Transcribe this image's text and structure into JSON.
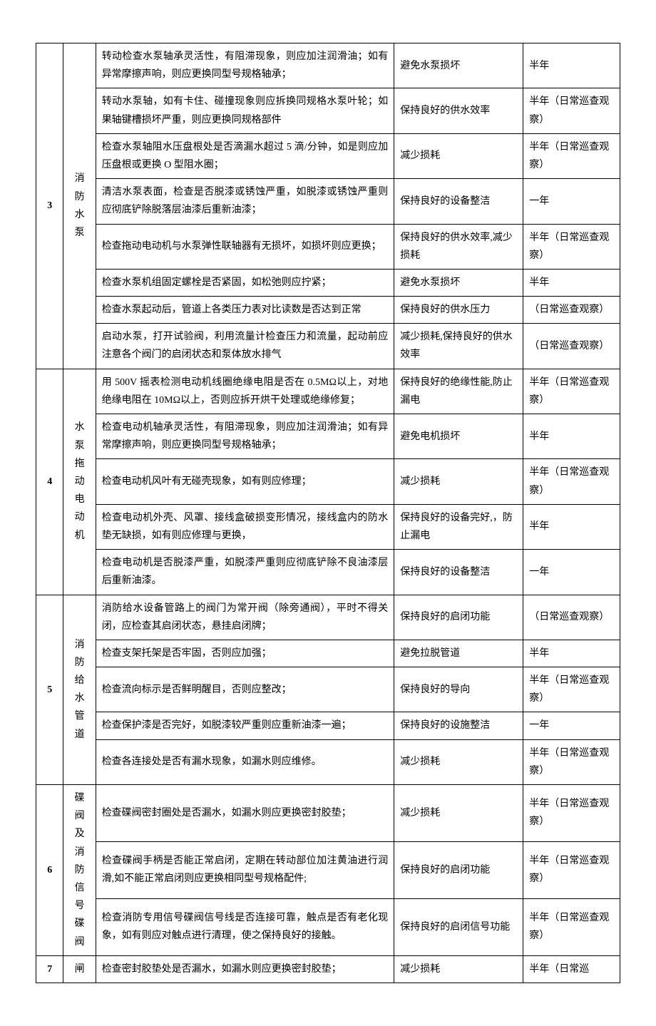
{
  "sections": [
    {
      "idx": "3",
      "name": "消防水泵",
      "rows": [
        {
          "desc": "转动检查水泵轴承灵活性，有阻滞现象，则应加注润滑油；如有异常摩擦声响，则应更换同型号规格轴承；",
          "goal": "避免水泵损坏",
          "freq": "半年"
        },
        {
          "desc": "转动水泵轴，如有卡住、碰撞现象则应拆换同规格水泵叶轮；如果轴键槽损坏严重，则应更换同规格部件",
          "goal": "保持良好的供水效率",
          "freq": "半年（日常巡查观察）"
        },
        {
          "desc": "检查水泵轴阻水压盘根处是否滴漏水超过 5 滴/分钟，如是则应加压盘根或更换 O 型阻水圈；",
          "goal": "减少损耗",
          "freq": "半年（日常巡查观察）"
        },
        {
          "desc": "清洁水泵表面，检查是否脱漆或锈蚀严重，如脱漆或锈蚀严重则应彻底铲除脱落层油漆后重新油漆；",
          "goal": "保持良好的设备整洁",
          "freq": "一年"
        },
        {
          "desc": "检查拖动电动机与水泵弹性联轴器有无损坏，如损坏则应更换；",
          "goal": "保持良好的供水效率,减少损耗",
          "freq": "半年（日常巡查观察）"
        },
        {
          "desc": "检查水泵机组固定螺栓是否紧固，如松弛则应拧紧；",
          "goal": "避免水泵损坏",
          "freq": "半年"
        },
        {
          "desc": "检查水泵起动后，管道上各类压力表对比读数是否达到正常",
          "goal": "保持良好的供水压力",
          "freq": "（日常巡查观察）"
        },
        {
          "desc": "启动水泵，打开试验阀，利用流量计检查压力和流量，起动前应注意各个阀门的启闭状态和泵体放水排气",
          "goal": "减少损耗,保持良好的供水效率",
          "freq": "（日常巡查观察）"
        }
      ]
    },
    {
      "idx": "4",
      "name": "水泵拖动电动机",
      "rows": [
        {
          "desc": "用 500V 摇表检测电动机线圈绝缘电阻是否在 0.5MΩ以上，对地绝缘电阻在 10MΩ以上，否则应拆开烘干处理或绝缘修复；",
          "goal": "保持良好的绝缘性能,防止漏电",
          "freq": "半年（日常巡查观察）"
        },
        {
          "desc": "检查电动机轴承灵活性，有阻滞现象，则应加注润滑油；如有异常摩擦声响，则应更换同型号规格轴承；",
          "goal": "避免电机损坏",
          "freq": "半年"
        },
        {
          "desc": "检查电动机风叶有无碰壳现象，如有则应修理；",
          "goal": "减少损耗",
          "freq": "半年（日常巡查观察）"
        },
        {
          "desc": "检查电动机外壳、风罩、接线盒破损变形情况，接线盒内的防水垫无缺损，如有则应修理与更换，",
          "goal": "保持良好的设备完好,，防止漏电",
          "freq": "半年"
        },
        {
          "desc": "检查电动机是否脱漆严重，如脱漆严重则应彻底铲除不良油漆层后重新油漆。",
          "goal": "保持良好的设备整洁",
          "freq": "一年"
        }
      ]
    },
    {
      "idx": "5",
      "name": "消防给水管道",
      "rows": [
        {
          "desc": "消防给水设备管路上的阀门为常开阀（除旁通阀），平时不得关闭，应检查其启闭状态，悬挂启闭牌；",
          "goal": "保持良好的启闭功能",
          "freq": "（日常巡查观察）"
        },
        {
          "desc": "检查支架托架是否牢固，否则应加强；",
          "goal": "避免拉脱管道",
          "freq": "半年"
        },
        {
          "desc": "检查流向标示是否鲜明醒目，否则应整改；",
          "goal": "保持良好的导向",
          "freq": "半年（日常巡查观察）"
        },
        {
          "desc": "检查保护漆是否完好，如脱漆较严重则应重新油漆一遍；",
          "goal": "保持良好的设施整洁",
          "freq": "一年"
        },
        {
          "desc": "检查各连接处是否有漏水现象，如漏水则应维修。",
          "goal": "减少损耗",
          "freq": "半年（日常巡查观察）"
        }
      ]
    },
    {
      "idx": "6",
      "name": "碟阀及消防信号碟阀",
      "rows": [
        {
          "desc": "检查碟阀密封圈处是否漏水，如漏水则应更换密封胶垫；",
          "goal": "减少损耗",
          "freq": "半年（日常巡查观察）"
        },
        {
          "desc": "检查碟阀手柄是否能正常启闭，定期在转动部位加注黄油进行润滑,如不能正常启闭则应更换相同型号规格配件;",
          "goal": "保持良好的启闭功能",
          "freq": "半年（日常巡查观察）"
        },
        {
          "desc": "检查消防专用信号碟阀信号线是否连接可靠，触点是否有老化现象，如有则应对触点进行清理，使之保持良好的接触。",
          "goal": "保持良好的启闭信号功能",
          "freq": "半年（日常巡查观察）"
        }
      ]
    },
    {
      "idx": "7",
      "name": "闸",
      "rows": [
        {
          "desc": "检查密封胶垫处是否漏水，如漏水则应更换密封胶垫；",
          "goal": "减少损耗",
          "freq": "半年（日常巡"
        }
      ]
    }
  ]
}
